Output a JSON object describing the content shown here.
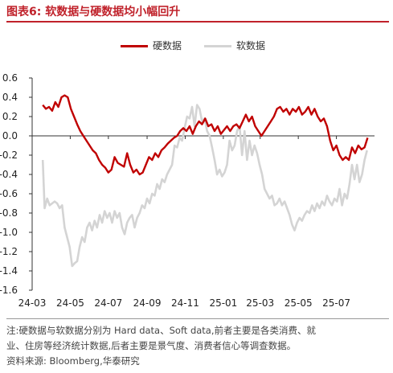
{
  "figure": {
    "title": "图表6:  软数据与硬数据均小幅回升",
    "note_line1": "注:硬数据与软数据分别为 Hard data、Soft data,前者主要是各类消费、就",
    "note_line2": "业、住房等经济统计数据,后者主要是景气度、消费者信心等调查数据。",
    "source": "资料来源:  Bloomberg,华泰研究"
  },
  "chart_data": {
    "type": "line",
    "title": "",
    "xlabel": "",
    "ylabel": "",
    "ylim": [
      -1.6,
      0.6
    ],
    "yticks": [
      0.6,
      0.4,
      0.2,
      0.0,
      -0.2,
      -0.4,
      -0.6,
      -0.8,
      -1.0,
      -1.2,
      -1.4,
      -1.6
    ],
    "ytick_labels": [
      "0.6",
      "0.4",
      "0.2",
      "0.0",
      "-0.2",
      "-0.4",
      "-0.6",
      "-0.8",
      "-1.0",
      "-1.2",
      "-1.4",
      "-1.6"
    ],
    "xlim": [
      "2024-03-01",
      "2025-08-31"
    ],
    "xticks": [
      "2024-03-01",
      "2024-05-01",
      "2024-07-01",
      "2024-09-01",
      "2024-11-01",
      "2025-01-01",
      "2025-03-01",
      "2025-05-01",
      "2025-07-01"
    ],
    "xtick_labels": [
      "24-03",
      "24-05",
      "24-07",
      "24-09",
      "24-11",
      "25-01",
      "25-03",
      "25-05",
      "25-07"
    ],
    "zero_line": true,
    "grid": false,
    "legend_position": "top-center",
    "series": [
      {
        "name": "硬数据",
        "color": "#c00000",
        "points": [
          [
            "2024-03-18",
            0.32
          ],
          [
            "2024-03-23",
            0.28
          ],
          [
            "2024-03-28",
            0.3
          ],
          [
            "2024-04-02",
            0.26
          ],
          [
            "2024-04-07",
            0.35
          ],
          [
            "2024-04-12",
            0.3
          ],
          [
            "2024-04-17",
            0.4
          ],
          [
            "2024-04-22",
            0.42
          ],
          [
            "2024-04-27",
            0.4
          ],
          [
            "2024-05-02",
            0.28
          ],
          [
            "2024-05-07",
            0.2
          ],
          [
            "2024-05-12",
            0.12
          ],
          [
            "2024-05-17",
            0.05
          ],
          [
            "2024-05-22",
            0.0
          ],
          [
            "2024-05-27",
            -0.05
          ],
          [
            "2024-06-01",
            -0.1
          ],
          [
            "2024-06-06",
            -0.15
          ],
          [
            "2024-06-11",
            -0.18
          ],
          [
            "2024-06-16",
            -0.25
          ],
          [
            "2024-06-21",
            -0.3
          ],
          [
            "2024-06-26",
            -0.33
          ],
          [
            "2024-07-01",
            -0.38
          ],
          [
            "2024-07-06",
            -0.35
          ],
          [
            "2024-07-11",
            -0.22
          ],
          [
            "2024-07-16",
            -0.28
          ],
          [
            "2024-07-21",
            -0.3
          ],
          [
            "2024-07-26",
            -0.32
          ],
          [
            "2024-07-31",
            -0.18
          ],
          [
            "2024-08-05",
            -0.3
          ],
          [
            "2024-08-10",
            -0.38
          ],
          [
            "2024-08-15",
            -0.35
          ],
          [
            "2024-08-20",
            -0.4
          ],
          [
            "2024-08-25",
            -0.38
          ],
          [
            "2024-08-30",
            -0.3
          ],
          [
            "2024-09-04",
            -0.22
          ],
          [
            "2024-09-09",
            -0.25
          ],
          [
            "2024-09-14",
            -0.18
          ],
          [
            "2024-09-19",
            -0.22
          ],
          [
            "2024-09-24",
            -0.15
          ],
          [
            "2024-09-29",
            -0.12
          ],
          [
            "2024-10-04",
            -0.08
          ],
          [
            "2024-10-09",
            -0.05
          ],
          [
            "2024-10-14",
            -0.02
          ],
          [
            "2024-10-19",
            0.0
          ],
          [
            "2024-10-24",
            0.05
          ],
          [
            "2024-10-29",
            0.08
          ],
          [
            "2024-11-03",
            0.05
          ],
          [
            "2024-11-08",
            0.1
          ],
          [
            "2024-11-13",
            0.02
          ],
          [
            "2024-11-18",
            0.1
          ],
          [
            "2024-11-23",
            0.15
          ],
          [
            "2024-11-28",
            0.12
          ],
          [
            "2024-12-03",
            0.18
          ],
          [
            "2024-12-08",
            0.1
          ],
          [
            "2024-12-13",
            0.12
          ],
          [
            "2024-12-18",
            0.05
          ],
          [
            "2024-12-23",
            0.1
          ],
          [
            "2024-12-28",
            0.02
          ],
          [
            "2025-01-02",
            0.06
          ],
          [
            "2025-01-07",
            0.1
          ],
          [
            "2025-01-12",
            0.05
          ],
          [
            "2025-01-17",
            0.1
          ],
          [
            "2025-01-22",
            0.12
          ],
          [
            "2025-01-27",
            0.08
          ],
          [
            "2025-02-01",
            0.15
          ],
          [
            "2025-02-06",
            0.22
          ],
          [
            "2025-02-11",
            0.15
          ],
          [
            "2025-02-16",
            0.2
          ],
          [
            "2025-02-21",
            0.1
          ],
          [
            "2025-02-26",
            0.05
          ],
          [
            "2025-03-03",
            0.0
          ],
          [
            "2025-03-08",
            0.05
          ],
          [
            "2025-03-13",
            0.1
          ],
          [
            "2025-03-18",
            0.15
          ],
          [
            "2025-03-23",
            0.2
          ],
          [
            "2025-03-28",
            0.28
          ],
          [
            "2025-04-02",
            0.3
          ],
          [
            "2025-04-07",
            0.25
          ],
          [
            "2025-04-12",
            0.28
          ],
          [
            "2025-04-17",
            0.22
          ],
          [
            "2025-04-22",
            0.28
          ],
          [
            "2025-04-27",
            0.25
          ],
          [
            "2025-05-02",
            0.3
          ],
          [
            "2025-05-07",
            0.22
          ],
          [
            "2025-05-12",
            0.25
          ],
          [
            "2025-05-17",
            0.3
          ],
          [
            "2025-05-22",
            0.22
          ],
          [
            "2025-05-27",
            0.28
          ],
          [
            "2025-06-01",
            0.2
          ],
          [
            "2025-06-06",
            0.15
          ],
          [
            "2025-06-11",
            0.18
          ],
          [
            "2025-06-16",
            0.1
          ],
          [
            "2025-06-21",
            -0.05
          ],
          [
            "2025-06-26",
            -0.15
          ],
          [
            "2025-07-01",
            -0.1
          ],
          [
            "2025-07-06",
            -0.2
          ],
          [
            "2025-07-11",
            -0.25
          ],
          [
            "2025-07-16",
            -0.22
          ],
          [
            "2025-07-21",
            -0.25
          ],
          [
            "2025-07-26",
            -0.12
          ],
          [
            "2025-07-31",
            -0.18
          ],
          [
            "2025-08-05",
            -0.1
          ],
          [
            "2025-08-10",
            -0.14
          ],
          [
            "2025-08-15",
            -0.12
          ],
          [
            "2025-08-20",
            -0.02
          ]
        ]
      },
      {
        "name": "软数据",
        "color": "#d4d4d4",
        "points": [
          [
            "2024-03-18",
            -0.25
          ],
          [
            "2024-03-21",
            -0.75
          ],
          [
            "2024-03-25",
            -0.65
          ],
          [
            "2024-03-29",
            -0.72
          ],
          [
            "2024-04-02",
            -0.7
          ],
          [
            "2024-04-06",
            -0.68
          ],
          [
            "2024-04-10",
            -0.7
          ],
          [
            "2024-04-14",
            -0.75
          ],
          [
            "2024-04-18",
            -0.72
          ],
          [
            "2024-04-22",
            -0.95
          ],
          [
            "2024-04-26",
            -1.05
          ],
          [
            "2024-04-30",
            -1.15
          ],
          [
            "2024-05-04",
            -1.35
          ],
          [
            "2024-05-08",
            -1.32
          ],
          [
            "2024-05-12",
            -1.3
          ],
          [
            "2024-05-16",
            -1.15
          ],
          [
            "2024-05-20",
            -1.05
          ],
          [
            "2024-05-24",
            -1.1
          ],
          [
            "2024-05-28",
            -0.95
          ],
          [
            "2024-06-01",
            -0.9
          ],
          [
            "2024-06-05",
            -0.98
          ],
          [
            "2024-06-09",
            -0.88
          ],
          [
            "2024-06-13",
            -0.95
          ],
          [
            "2024-06-17",
            -0.82
          ],
          [
            "2024-06-21",
            -0.9
          ],
          [
            "2024-06-25",
            -0.78
          ],
          [
            "2024-06-29",
            -0.85
          ],
          [
            "2024-07-03",
            -0.8
          ],
          [
            "2024-07-07",
            -0.9
          ],
          [
            "2024-07-11",
            -0.78
          ],
          [
            "2024-07-15",
            -0.85
          ],
          [
            "2024-07-19",
            -0.8
          ],
          [
            "2024-07-23",
            -0.95
          ],
          [
            "2024-07-27",
            -1.02
          ],
          [
            "2024-07-31",
            -0.9
          ],
          [
            "2024-08-04",
            -0.85
          ],
          [
            "2024-08-08",
            -0.82
          ],
          [
            "2024-08-12",
            -0.95
          ],
          [
            "2024-08-16",
            -0.85
          ],
          [
            "2024-08-20",
            -0.8
          ],
          [
            "2024-08-24",
            -0.72
          ],
          [
            "2024-08-28",
            -0.75
          ],
          [
            "2024-09-01",
            -0.65
          ],
          [
            "2024-09-05",
            -0.7
          ],
          [
            "2024-09-09",
            -0.6
          ],
          [
            "2024-09-13",
            -0.62
          ],
          [
            "2024-09-17",
            -0.5
          ],
          [
            "2024-09-21",
            -0.55
          ],
          [
            "2024-09-25",
            -0.45
          ],
          [
            "2024-09-29",
            -0.48
          ],
          [
            "2024-10-03",
            -0.4
          ],
          [
            "2024-10-07",
            -0.35
          ],
          [
            "2024-10-11",
            -0.3
          ],
          [
            "2024-10-15",
            -0.1
          ],
          [
            "2024-10-19",
            -0.12
          ],
          [
            "2024-10-23",
            -0.02
          ],
          [
            "2024-10-27",
            -0.05
          ],
          [
            "2024-10-31",
            0.08
          ],
          [
            "2024-11-04",
            0.2
          ],
          [
            "2024-11-08",
            0.18
          ],
          [
            "2024-11-12",
            0.3
          ],
          [
            "2024-11-16",
            0.1
          ],
          [
            "2024-11-20",
            0.32
          ],
          [
            "2024-11-24",
            0.28
          ],
          [
            "2024-11-28",
            0.15
          ],
          [
            "2024-12-02",
            0.18
          ],
          [
            "2024-12-06",
            0.05
          ],
          [
            "2024-12-10",
            0.0
          ],
          [
            "2024-12-14",
            -0.12
          ],
          [
            "2024-12-18",
            -0.25
          ],
          [
            "2024-12-22",
            -0.4
          ],
          [
            "2024-12-26",
            -0.35
          ],
          [
            "2024-12-30",
            -0.42
          ],
          [
            "2025-01-03",
            -0.38
          ],
          [
            "2025-01-07",
            -0.3
          ],
          [
            "2025-01-11",
            -0.05
          ],
          [
            "2025-01-15",
            -0.15
          ],
          [
            "2025-01-19",
            -0.1
          ],
          [
            "2025-01-23",
            0.05
          ],
          [
            "2025-01-27",
            0.1
          ],
          [
            "2025-01-31",
            -0.2
          ],
          [
            "2025-02-04",
            0.05
          ],
          [
            "2025-02-08",
            -0.25
          ],
          [
            "2025-02-12",
            -0.05
          ],
          [
            "2025-02-16",
            -0.2
          ],
          [
            "2025-02-20",
            -0.1
          ],
          [
            "2025-02-24",
            -0.18
          ],
          [
            "2025-02-28",
            -0.3
          ],
          [
            "2025-03-04",
            -0.4
          ],
          [
            "2025-03-08",
            -0.55
          ],
          [
            "2025-03-12",
            -0.6
          ],
          [
            "2025-03-16",
            -0.65
          ],
          [
            "2025-03-20",
            -0.62
          ],
          [
            "2025-03-24",
            -0.72
          ],
          [
            "2025-03-28",
            -0.7
          ],
          [
            "2025-04-01",
            -0.65
          ],
          [
            "2025-04-05",
            -0.72
          ],
          [
            "2025-04-09",
            -0.68
          ],
          [
            "2025-04-13",
            -0.75
          ],
          [
            "2025-04-17",
            -0.82
          ],
          [
            "2025-04-21",
            -0.92
          ],
          [
            "2025-04-25",
            -0.98
          ],
          [
            "2025-04-29",
            -0.9
          ],
          [
            "2025-05-03",
            -0.85
          ],
          [
            "2025-05-07",
            -0.88
          ],
          [
            "2025-05-11",
            -0.82
          ],
          [
            "2025-05-15",
            -0.78
          ],
          [
            "2025-05-19",
            -0.8
          ],
          [
            "2025-05-23",
            -0.72
          ],
          [
            "2025-05-27",
            -0.78
          ],
          [
            "2025-05-31",
            -0.7
          ],
          [
            "2025-06-04",
            -0.75
          ],
          [
            "2025-06-08",
            -0.68
          ],
          [
            "2025-06-12",
            -0.72
          ],
          [
            "2025-06-16",
            -0.62
          ],
          [
            "2025-06-20",
            -0.68
          ],
          [
            "2025-06-24",
            -0.72
          ],
          [
            "2025-06-28",
            -0.65
          ],
          [
            "2025-07-02",
            -0.68
          ],
          [
            "2025-07-06",
            -0.55
          ],
          [
            "2025-07-10",
            -0.72
          ],
          [
            "2025-07-14",
            -0.6
          ],
          [
            "2025-07-18",
            -0.65
          ],
          [
            "2025-07-22",
            -0.5
          ],
          [
            "2025-07-26",
            -0.3
          ],
          [
            "2025-07-30",
            -0.45
          ],
          [
            "2025-08-03",
            -0.3
          ],
          [
            "2025-08-07",
            -0.48
          ],
          [
            "2025-08-11",
            -0.4
          ],
          [
            "2025-08-15",
            -0.25
          ],
          [
            "2025-08-19",
            -0.15
          ]
        ]
      }
    ]
  }
}
